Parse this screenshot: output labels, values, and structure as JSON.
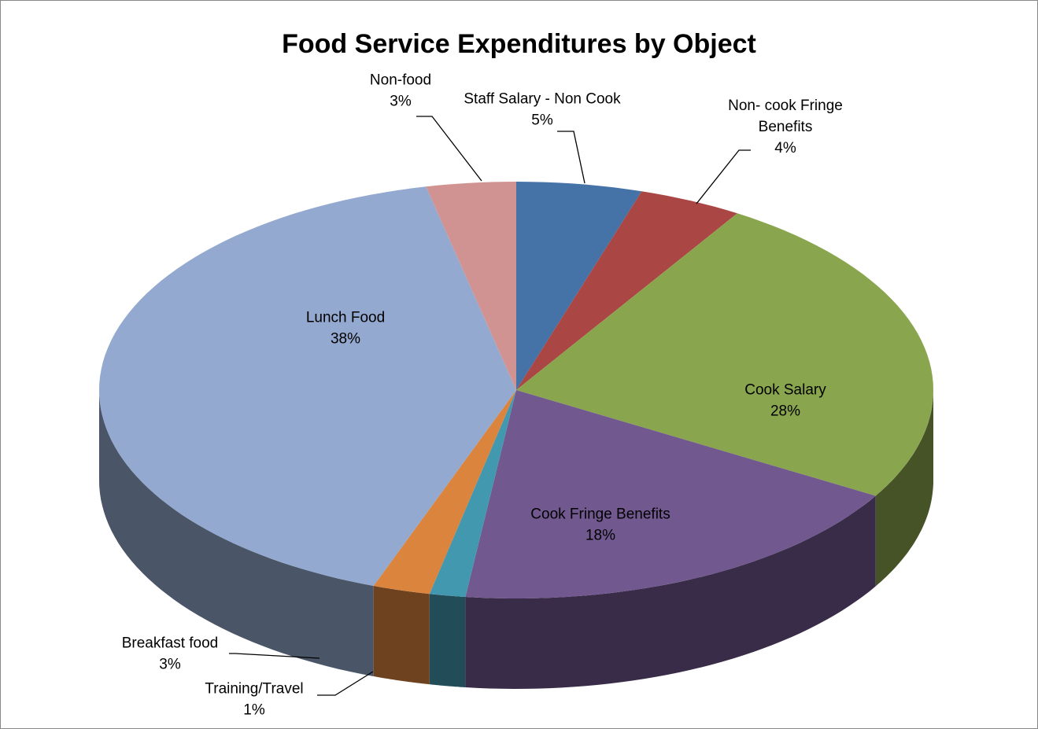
{
  "chart_data": {
    "type": "pie",
    "title": "Food Service Expenditures by Object",
    "style": "3d",
    "slices": [
      {
        "label_lines": [
          "Staff Salary - Non Cook"
        ],
        "percent_label": "5%",
        "value": 5,
        "color": "#4572A7"
      },
      {
        "label_lines": [
          "Non- cook Fringe",
          "Benefits"
        ],
        "percent_label": "4%",
        "value": 4,
        "color": "#AA4643"
      },
      {
        "label_lines": [
          "Cook Salary"
        ],
        "percent_label": "28%",
        "value": 28,
        "color": "#89A54E"
      },
      {
        "label_lines": [
          "Cook Fringe Benefits"
        ],
        "percent_label": "18%",
        "value": 18,
        "color": "#71588F"
      },
      {
        "label_lines": [
          "Training/Travel"
        ],
        "percent_label": "1%",
        "value": 1,
        "color": "#4198AF"
      },
      {
        "label_lines": [
          "Breakfast food"
        ],
        "percent_label": "3%",
        "value": 3,
        "color": "#DB843D"
      },
      {
        "label_lines": [
          "Lunch Food"
        ],
        "percent_label": "38%",
        "value": 38,
        "color": "#93A9CF"
      },
      {
        "label_lines": [
          "Non-food"
        ],
        "percent_label": "3%",
        "value": 3,
        "color": "#D19392"
      }
    ]
  }
}
